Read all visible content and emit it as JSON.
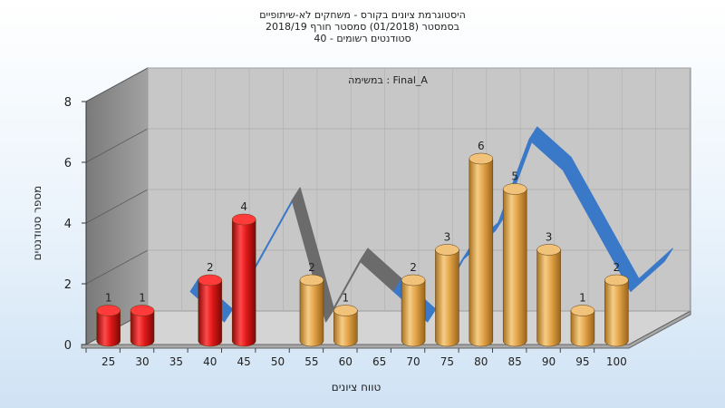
{
  "title_lines": [
    "היסטוגרמת ציונים בקורס - משחקים לא-שיתופיים",
    "בסמסטר  (01/2018)  סמסטר חורף 2018/19",
    "סטודנטים רשומים - 40"
  ],
  "colors": {
    "red_bar": "#e01818",
    "orange_bar": "#e3a54a",
    "ribbon_blue": "#3a78c8",
    "ribbon_gray": "#6b6b6b",
    "floor": "#d4d4d4",
    "back_wall": "#c7c7c7",
    "left_wall": "#8e8e8e"
  },
  "chart_data": {
    "type": "bar",
    "title": "Final_A : במשימה",
    "xlabel": "טווח ציונים",
    "ylabel": "מספר סטודנטים",
    "ylim": [
      0,
      8
    ],
    "yticks": [
      "0",
      "2",
      "4",
      "6",
      "8"
    ],
    "categories": [
      "25",
      "30",
      "35",
      "40",
      "45",
      "50",
      "55",
      "60",
      "65",
      "70",
      "75",
      "80",
      "85",
      "90",
      "95",
      "100"
    ],
    "values": [
      1,
      1,
      0,
      2,
      4,
      0,
      2,
      1,
      0,
      2,
      3,
      6,
      5,
      3,
      1,
      2
    ],
    "data_labels": [
      "1",
      "1",
      "",
      "2",
      "4",
      "",
      "2",
      "1",
      "",
      "2",
      "3",
      "6",
      "5",
      "3",
      "1",
      "2"
    ],
    "bar_colors": [
      "red",
      "red",
      "red",
      "red",
      "red",
      "orange",
      "orange",
      "orange",
      "orange",
      "orange",
      "orange",
      "orange",
      "orange",
      "orange",
      "orange",
      "orange"
    ],
    "grid": true
  }
}
